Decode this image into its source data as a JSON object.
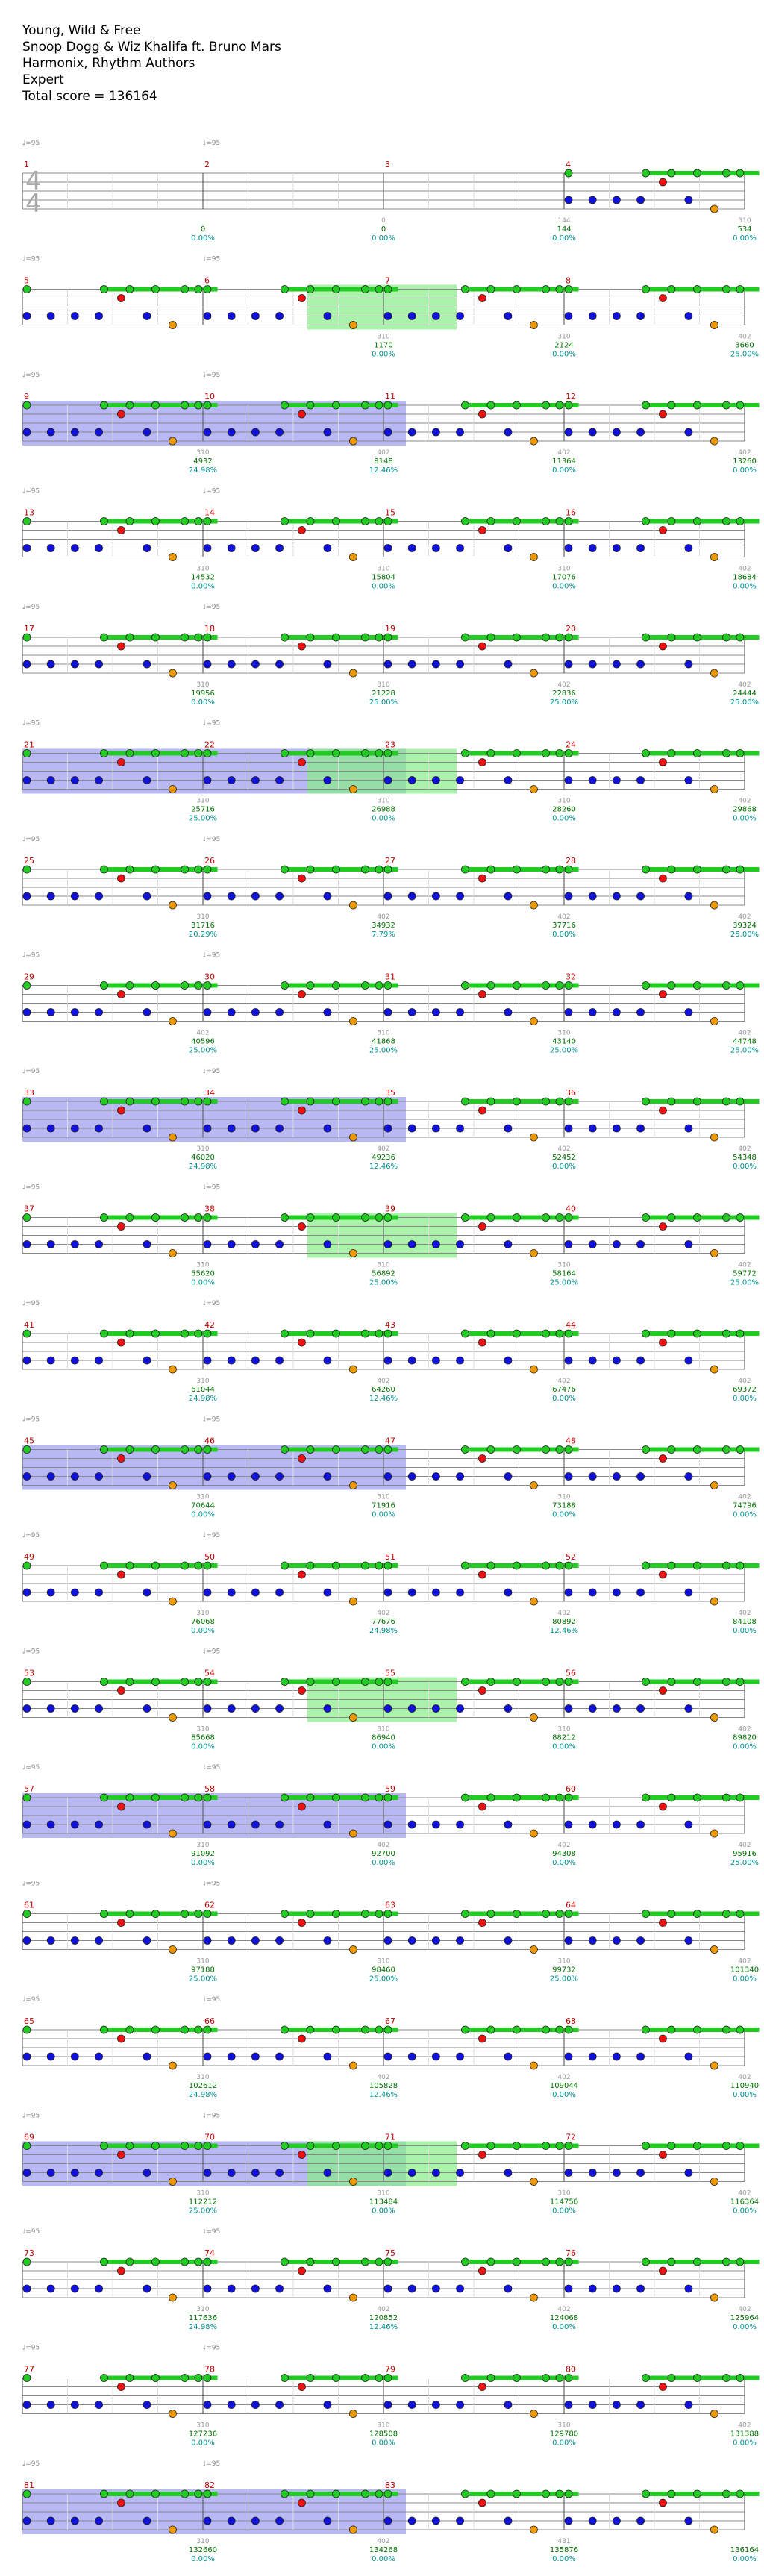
{
  "header": {
    "title": "Young, Wild & Free",
    "artist": "Snoop Dogg & Wiz Khalifa ft. Bruno Mars",
    "charter": "Harmonix, Rhythm Authors",
    "difficulty": "Expert",
    "total_score": "Total score = 136164"
  },
  "time_signature": {
    "top": "4",
    "bottom": "4"
  },
  "bpm_label": "♩=95",
  "colors": {
    "green": "#22cc22",
    "red": "#ee1111",
    "yellow": "#eeee00",
    "blue": "#1111dd",
    "orange": "#ee9900",
    "sp_phrase": "#88ee88",
    "overdrive": "#8888ee",
    "staff": "#888888",
    "measure_number": "#c00000",
    "score": "#007000",
    "percent": "#009090"
  },
  "measures": [
    {
      "n": "1",
      "gems": "",
      "score": "0",
      "pct": "0.00%"
    },
    {
      "n": "2",
      "gems": "0",
      "score": "0",
      "pct": "0.00%"
    },
    {
      "n": "3",
      "gems": "144",
      "score": "144",
      "pct": "0.00%"
    },
    {
      "n": "4",
      "gems": "310",
      "score": "534",
      "pct": "0.00%"
    },
    {
      "n": "5",
      "gems": "",
      "score": "",
      "pct": ""
    },
    {
      "n": "6",
      "gems": "310",
      "score": "1170",
      "pct": "0.00%"
    },
    {
      "n": "7",
      "gems": "310",
      "score": "2124",
      "pct": "0.00%"
    },
    {
      "n": "8",
      "gems": "402",
      "score": "3660",
      "pct": "25.00%"
    },
    {
      "n": "9",
      "gems": "310",
      "score": "4932",
      "pct": "24.98%"
    },
    {
      "n": "10",
      "gems": "402",
      "score": "8148",
      "pct": "12.46%"
    },
    {
      "n": "11",
      "gems": "402",
      "score": "11364",
      "pct": "0.00%"
    },
    {
      "n": "12",
      "gems": "402",
      "score": "13260",
      "pct": "0.00%"
    },
    {
      "n": "13",
      "gems": "310",
      "score": "14532",
      "pct": "0.00%"
    },
    {
      "n": "14",
      "gems": "310",
      "score": "15804",
      "pct": "0.00%"
    },
    {
      "n": "15",
      "gems": "310",
      "score": "17076",
      "pct": "0.00%"
    },
    {
      "n": "16",
      "gems": "402",
      "score": "18684",
      "pct": "0.00%"
    },
    {
      "n": "17",
      "gems": "310",
      "score": "19956",
      "pct": "0.00%"
    },
    {
      "n": "18",
      "gems": "310",
      "score": "21228",
      "pct": "25.00%"
    },
    {
      "n": "19",
      "gems": "402",
      "score": "22836",
      "pct": "25.00%"
    },
    {
      "n": "20",
      "gems": "402",
      "score": "24444",
      "pct": "25.00%"
    },
    {
      "n": "21",
      "gems": "310",
      "score": "25716",
      "pct": "25.00%"
    },
    {
      "n": "22",
      "gems": "310",
      "score": "26988",
      "pct": "0.00%"
    },
    {
      "n": "23",
      "gems": "310",
      "score": "28260",
      "pct": "0.00%"
    },
    {
      "n": "24",
      "gems": "402",
      "score": "29868",
      "pct": "0.00%"
    },
    {
      "n": "25",
      "gems": "310",
      "score": "31716",
      "pct": "20.29%"
    },
    {
      "n": "26",
      "gems": "402",
      "score": "34932",
      "pct": "7.79%"
    },
    {
      "n": "27",
      "gems": "402",
      "score": "37716",
      "pct": "0.00%"
    },
    {
      "n": "28",
      "gems": "402",
      "score": "39324",
      "pct": "25.00%"
    },
    {
      "n": "29",
      "gems": "402",
      "score": "40596",
      "pct": "25.00%"
    },
    {
      "n": "30",
      "gems": "310",
      "score": "41868",
      "pct": "25.00%"
    },
    {
      "n": "31",
      "gems": "310",
      "score": "43140",
      "pct": "25.00%"
    },
    {
      "n": "32",
      "gems": "402",
      "score": "44748",
      "pct": "25.00%"
    },
    {
      "n": "33",
      "gems": "310",
      "score": "46020",
      "pct": "24.98%"
    },
    {
      "n": "34",
      "gems": "402",
      "score": "49236",
      "pct": "12.46%"
    },
    {
      "n": "35",
      "gems": "402",
      "score": "52452",
      "pct": "0.00%"
    },
    {
      "n": "36",
      "gems": "402",
      "score": "54348",
      "pct": "0.00%"
    },
    {
      "n": "37",
      "gems": "310",
      "score": "55620",
      "pct": "0.00%"
    },
    {
      "n": "38",
      "gems": "310",
      "score": "56892",
      "pct": "25.00%"
    },
    {
      "n": "39",
      "gems": "310",
      "score": "58164",
      "pct": "25.00%"
    },
    {
      "n": "40",
      "gems": "402",
      "score": "59772",
      "pct": "25.00%"
    },
    {
      "n": "41",
      "gems": "310",
      "score": "61044",
      "pct": "24.98%"
    },
    {
      "n": "42",
      "gems": "402",
      "score": "64260",
      "pct": "12.46%"
    },
    {
      "n": "43",
      "gems": "402",
      "score": "67476",
      "pct": "0.00%"
    },
    {
      "n": "44",
      "gems": "402",
      "score": "69372",
      "pct": "0.00%"
    },
    {
      "n": "45",
      "gems": "310",
      "score": "70644",
      "pct": "0.00%"
    },
    {
      "n": "46",
      "gems": "310",
      "score": "71916",
      "pct": "0.00%"
    },
    {
      "n": "47",
      "gems": "310",
      "score": "73188",
      "pct": "0.00%"
    },
    {
      "n": "48",
      "gems": "402",
      "score": "74796",
      "pct": "0.00%"
    },
    {
      "n": "49",
      "gems": "310",
      "score": "76068",
      "pct": "0.00%"
    },
    {
      "n": "50",
      "gems": "402",
      "score": "77676",
      "pct": "24.98%"
    },
    {
      "n": "51",
      "gems": "402",
      "score": "80892",
      "pct": "12.46%"
    },
    {
      "n": "52",
      "gems": "402",
      "score": "84108",
      "pct": "0.00%"
    },
    {
      "n": "53",
      "gems": "310",
      "score": "85668",
      "pct": "0.00%"
    },
    {
      "n": "54",
      "gems": "310",
      "score": "86940",
      "pct": "0.00%"
    },
    {
      "n": "55",
      "gems": "310",
      "score": "88212",
      "pct": "0.00%"
    },
    {
      "n": "56",
      "gems": "402",
      "score": "89820",
      "pct": "0.00%"
    },
    {
      "n": "57",
      "gems": "310",
      "score": "91092",
      "pct": "0.00%"
    },
    {
      "n": "58",
      "gems": "402",
      "score": "92700",
      "pct": "0.00%"
    },
    {
      "n": "59",
      "gems": "402",
      "score": "94308",
      "pct": "0.00%"
    },
    {
      "n": "60",
      "gems": "402",
      "score": "95916",
      "pct": "25.00%"
    },
    {
      "n": "61",
      "gems": "310",
      "score": "97188",
      "pct": "25.00%"
    },
    {
      "n": "62",
      "gems": "310",
      "score": "98460",
      "pct": "25.00%"
    },
    {
      "n": "63",
      "gems": "310",
      "score": "99732",
      "pct": "25.00%"
    },
    {
      "n": "64",
      "gems": "402",
      "score": "101340",
      "pct": "0.00%"
    },
    {
      "n": "65",
      "gems": "310",
      "score": "102612",
      "pct": "24.98%"
    },
    {
      "n": "66",
      "gems": "402",
      "score": "105828",
      "pct": "12.46%"
    },
    {
      "n": "67",
      "gems": "402",
      "score": "109044",
      "pct": "0.00%"
    },
    {
      "n": "68",
      "gems": "402",
      "score": "110940",
      "pct": "0.00%"
    },
    {
      "n": "69",
      "gems": "310",
      "score": "112212",
      "pct": "25.00%"
    },
    {
      "n": "70",
      "gems": "310",
      "score": "113484",
      "pct": "0.00%"
    },
    {
      "n": "71",
      "gems": "310",
      "score": "114756",
      "pct": "0.00%"
    },
    {
      "n": "72",
      "gems": "402",
      "score": "116364",
      "pct": "0.00%"
    },
    {
      "n": "73",
      "gems": "310",
      "score": "117636",
      "pct": "24.98%"
    },
    {
      "n": "74",
      "gems": "402",
      "score": "120852",
      "pct": "12.46%"
    },
    {
      "n": "75",
      "gems": "402",
      "score": "124068",
      "pct": "0.00%"
    },
    {
      "n": "76",
      "gems": "402",
      "score": "125964",
      "pct": "0.00%"
    },
    {
      "n": "77",
      "gems": "310",
      "score": "127236",
      "pct": "0.00%"
    },
    {
      "n": "78",
      "gems": "310",
      "score": "128508",
      "pct": "0.00%"
    },
    {
      "n": "79",
      "gems": "310",
      "score": "129780",
      "pct": "0.00%"
    },
    {
      "n": "80",
      "gems": "402",
      "score": "131388",
      "pct": "0.00%"
    },
    {
      "n": "81",
      "gems": "310",
      "score": "132660",
      "pct": "0.00%"
    },
    {
      "n": "82",
      "gems": "402",
      "score": "134268",
      "pct": "0.00%"
    },
    {
      "n": "83",
      "gems": "481",
      "score": "135876",
      "pct": "0.00%"
    },
    {
      "n": "",
      "gems": "",
      "score": "136164",
      "pct": "0.00%"
    }
  ]
}
